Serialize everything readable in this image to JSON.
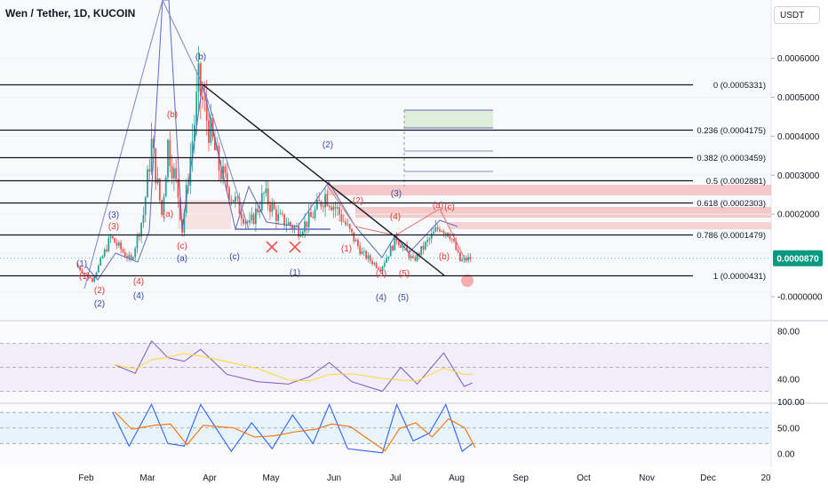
{
  "header": {
    "title": "Wen / Tether, 1D, KUCOIN",
    "currency": "USDT"
  },
  "price_axis": {
    "ticks": [
      "0.0006000",
      "0.0005000",
      "0.0004000",
      "0.0003000",
      "0.0002000",
      "-0.0000000"
    ],
    "last_price": "0.0000870"
  },
  "fib_labels": [
    "0 (0.0005331)",
    "0.236 (0.0004175)",
    "0.382 (0.0003459)",
    "0.5 (0.0002881)",
    "0.618 (0.0002303)",
    "0.786 (0.0001479)",
    "1 (0.0000431)"
  ],
  "rsi_axis": [
    "80.00",
    "40.00"
  ],
  "stoch_axis": [
    "100.00",
    "50.00",
    "0.00"
  ],
  "time_axis": [
    "Feb",
    "Mar",
    "Apr",
    "May",
    "Jun",
    "Jul",
    "Aug",
    "Sep",
    "Oct",
    "Nov",
    "Dec",
    "20"
  ],
  "wave_labels_red": [
    "(1)",
    "(2)",
    "(3)",
    "(4)",
    "(b)",
    "(a)",
    "(c)",
    "(1)",
    "(2)",
    "(3)",
    "(4)",
    "(5)",
    "(a)",
    "(b)",
    "(c)"
  ],
  "wave_labels_blue": [
    "(1)",
    "(2)",
    "(3)",
    "(4)",
    "(b)",
    "(a)",
    "(c)",
    "(1)",
    "(2)",
    "(3)",
    "(4)",
    "(5)"
  ],
  "chart_data": {
    "type": "candlestick",
    "title": "Wen / Tether, 1D, KUCOIN",
    "y_unit": "USDT",
    "last_close": 8.7e-05,
    "fib_retracement": [
      {
        "level": 0,
        "price": 0.0005331
      },
      {
        "level": 0.236,
        "price": 0.0004175
      },
      {
        "level": 0.382,
        "price": 0.0003459
      },
      {
        "level": 0.5,
        "price": 0.0002881
      },
      {
        "level": 0.618,
        "price": 0.0002303
      },
      {
        "level": 0.786,
        "price": 0.0001479
      },
      {
        "level": 1,
        "price": 4.31e-05
      }
    ],
    "price_path": [
      {
        "date": "2024-01-28",
        "price": 7e-05
      },
      {
        "date": "2024-02-05",
        "price": 3e-05
      },
      {
        "date": "2024-02-14",
        "price": 0.00014
      },
      {
        "date": "2024-02-24",
        "price": 8e-05
      },
      {
        "date": "2024-03-01",
        "price": 0.0002
      },
      {
        "date": "2024-03-05",
        "price": 0.00038
      },
      {
        "date": "2024-03-10",
        "price": 0.0002
      },
      {
        "date": "2024-03-13",
        "price": 0.00038
      },
      {
        "date": "2024-03-18",
        "price": 0.00025
      },
      {
        "date": "2024-03-20",
        "price": 0.00016
      },
      {
        "date": "2024-03-28",
        "price": 0.00053
      },
      {
        "date": "2024-04-07",
        "price": 0.00032
      },
      {
        "date": "2024-04-13",
        "price": 0.00025
      },
      {
        "date": "2024-04-22",
        "price": 0.00017
      },
      {
        "date": "2024-04-29",
        "price": 0.00025
      },
      {
        "date": "2024-05-06",
        "price": 0.00019
      },
      {
        "date": "2024-05-16",
        "price": 0.00016
      },
      {
        "date": "2024-05-22",
        "price": 0.00019
      },
      {
        "date": "2024-05-29",
        "price": 0.00025
      },
      {
        "date": "2024-06-04",
        "price": 0.00021
      },
      {
        "date": "2024-06-16",
        "price": 0.0001
      },
      {
        "date": "2024-06-25",
        "price": 6e-05
      },
      {
        "date": "2024-07-03",
        "price": 0.00014
      },
      {
        "date": "2024-07-11",
        "price": 8e-05
      },
      {
        "date": "2024-07-24",
        "price": 0.00017
      },
      {
        "date": "2024-07-29",
        "price": 0.00015
      },
      {
        "date": "2024-08-03",
        "price": 8e-05
      },
      {
        "date": "2024-08-08",
        "price": 8.7e-05
      }
    ],
    "rsi": {
      "levels": [
        70,
        50,
        30
      ],
      "axis_ticks": [
        80,
        40
      ],
      "points": [
        {
          "date": "2024-02-15",
          "value": 52
        },
        {
          "date": "2024-02-25",
          "value": 45
        },
        {
          "date": "2024-03-04",
          "value": 72
        },
        {
          "date": "2024-03-12",
          "value": 58
        },
        {
          "date": "2024-03-20",
          "value": 55
        },
        {
          "date": "2024-03-28",
          "value": 65
        },
        {
          "date": "2024-04-10",
          "value": 44
        },
        {
          "date": "2024-04-25",
          "value": 38
        },
        {
          "date": "2024-05-10",
          "value": 36
        },
        {
          "date": "2024-05-20",
          "value": 42
        },
        {
          "date": "2024-05-30",
          "value": 54
        },
        {
          "date": "2024-06-10",
          "value": 38
        },
        {
          "date": "2024-06-25",
          "value": 30
        },
        {
          "date": "2024-07-04",
          "value": 50
        },
        {
          "date": "2024-07-12",
          "value": 36
        },
        {
          "date": "2024-07-25",
          "value": 62
        },
        {
          "date": "2024-08-04",
          "value": 34
        },
        {
          "date": "2024-08-08",
          "value": 37
        }
      ]
    },
    "stoch_rsi": {
      "levels": [
        80,
        50,
        20
      ],
      "axis_ticks": [
        100,
        50,
        0
      ],
      "points": [
        {
          "date": "2024-02-14",
          "value": 80
        },
        {
          "date": "2024-02-22",
          "value": 15
        },
        {
          "date": "2024-03-04",
          "value": 95
        },
        {
          "date": "2024-03-12",
          "value": 20
        },
        {
          "date": "2024-03-20",
          "value": 15
        },
        {
          "date": "2024-03-28",
          "value": 95
        },
        {
          "date": "2024-04-12",
          "value": 5
        },
        {
          "date": "2024-04-22",
          "value": 60
        },
        {
          "date": "2024-05-02",
          "value": 10
        },
        {
          "date": "2024-05-12",
          "value": 75
        },
        {
          "date": "2024-05-22",
          "value": 20
        },
        {
          "date": "2024-05-30",
          "value": 95
        },
        {
          "date": "2024-06-08",
          "value": 10
        },
        {
          "date": "2024-06-25",
          "value": 2
        },
        {
          "date": "2024-07-02",
          "value": 95
        },
        {
          "date": "2024-07-10",
          "value": 25
        },
        {
          "date": "2024-07-18",
          "value": 40
        },
        {
          "date": "2024-07-26",
          "value": 95
        },
        {
          "date": "2024-08-03",
          "value": 5
        },
        {
          "date": "2024-08-08",
          "value": 20
        }
      ]
    }
  }
}
